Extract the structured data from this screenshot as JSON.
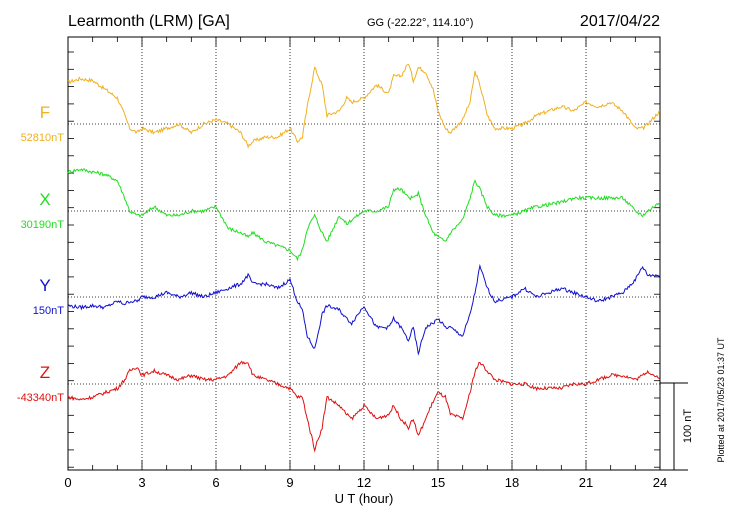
{
  "header": {
    "station": "Learmonth (LRM)  [GA]",
    "coords": "GG (-22.22°, 114.10°)",
    "date": "2017/04/22"
  },
  "plotted_note": "Plotted at 2017/05/23 01:37  UT",
  "scale_label": "100 nT",
  "colors": {
    "F": "#f0b020",
    "X": "#22dd22",
    "Y": "#1010d0",
    "Z": "#e01010"
  },
  "chart_data": {
    "type": "line",
    "xlabel": "U T (hour)",
    "xlim": [
      0,
      24
    ],
    "xticks": [
      "0",
      "3",
      "6",
      "9",
      "12",
      "15",
      "18",
      "21",
      "24"
    ],
    "grid": true,
    "series": [
      {
        "name": "F",
        "baseline": "52810nT",
        "x": [
          0,
          0.5,
          1,
          1.5,
          2,
          2.3,
          2.5,
          2.8,
          3,
          3.5,
          4,
          4.5,
          5,
          5.5,
          6,
          6.5,
          7,
          7.3,
          7.5,
          8,
          8.5,
          9,
          9.3,
          9.5,
          9.7,
          10,
          10.3,
          10.5,
          11,
          11.3,
          11.5,
          12,
          12.5,
          13,
          13.2,
          13.5,
          13.8,
          14,
          14.2,
          14.5,
          14.8,
          15,
          15.3,
          15.5,
          16,
          16.3,
          16.5,
          16.7,
          17,
          17.3,
          18,
          18.5,
          19,
          20,
          20.5,
          21,
          21.5,
          22,
          22.5,
          23,
          23.3,
          23.5,
          24
        ],
        "values": [
          48,
          52,
          50,
          40,
          30,
          10,
          -5,
          -10,
          -5,
          -10,
          -5,
          0,
          -10,
          0,
          5,
          0,
          -10,
          -25,
          -20,
          -15,
          -15,
          -5,
          -20,
          -15,
          20,
          65,
          45,
          10,
          15,
          30,
          25,
          30,
          45,
          35,
          55,
          55,
          70,
          50,
          65,
          60,
          40,
          15,
          -5,
          -10,
          5,
          25,
          60,
          45,
          10,
          -5,
          -5,
          0,
          10,
          20,
          15,
          25,
          20,
          25,
          15,
          -5,
          -5,
          0,
          15
        ]
      },
      {
        "name": "X",
        "baseline": "30190nT",
        "x": [
          0,
          0.5,
          1,
          1.5,
          2,
          2.3,
          2.5,
          2.8,
          3,
          3.5,
          4,
          4.5,
          5,
          5.5,
          6,
          6.5,
          7,
          7.3,
          7.5,
          8,
          8.5,
          9,
          9.3,
          9.5,
          9.7,
          10,
          10.3,
          10.5,
          11,
          11.3,
          11.5,
          12,
          12.5,
          13,
          13.2,
          13.5,
          13.8,
          14,
          14.2,
          14.5,
          14.8,
          15,
          15.3,
          15.5,
          16,
          16.3,
          16.5,
          16.7,
          17,
          17.3,
          18,
          18.5,
          19,
          20,
          20.5,
          21,
          21.5,
          22,
          22.5,
          23,
          23.3,
          23.5,
          24
        ],
        "values": [
          45,
          48,
          45,
          42,
          35,
          15,
          0,
          -5,
          -5,
          5,
          -5,
          -5,
          0,
          0,
          5,
          -20,
          -25,
          -30,
          -25,
          -35,
          -40,
          -45,
          -55,
          -45,
          -20,
          -5,
          -25,
          -35,
          -5,
          -15,
          -10,
          0,
          0,
          5,
          25,
          25,
          15,
          15,
          20,
          -5,
          -25,
          -30,
          -35,
          -25,
          -10,
          15,
          35,
          25,
          5,
          -5,
          -5,
          0,
          5,
          10,
          15,
          15,
          15,
          15,
          15,
          0,
          -5,
          0,
          10
        ]
      },
      {
        "name": "Y",
        "baseline": "150nT",
        "x": [
          0,
          0.5,
          1,
          1.5,
          2,
          2.3,
          2.5,
          2.8,
          3,
          3.5,
          4,
          4.5,
          5,
          5.5,
          6,
          6.5,
          7,
          7.3,
          7.5,
          8,
          8.5,
          9,
          9.3,
          9.5,
          9.7,
          10,
          10.3,
          10.5,
          11,
          11.3,
          11.5,
          12,
          12.5,
          13,
          13.2,
          13.5,
          13.8,
          14,
          14.2,
          14.5,
          14.8,
          15,
          15.3,
          15.5,
          16,
          16.3,
          16.5,
          16.7,
          17,
          17.3,
          18,
          18.5,
          19,
          20,
          20.5,
          21,
          21.5,
          22,
          22.5,
          23,
          23.3,
          23.5,
          24
        ],
        "values": [
          -10,
          -12,
          -10,
          -12,
          -5,
          -8,
          -5,
          -5,
          0,
          0,
          5,
          0,
          5,
          0,
          5,
          10,
          15,
          25,
          15,
          15,
          10,
          20,
          -5,
          -15,
          -45,
          -60,
          -20,
          -10,
          -15,
          -25,
          -30,
          -10,
          -35,
          -35,
          -25,
          -35,
          -50,
          -35,
          -65,
          -35,
          -30,
          -25,
          -35,
          -35,
          -45,
          -20,
          5,
          35,
          10,
          -5,
          0,
          10,
          0,
          10,
          5,
          0,
          -5,
          0,
          5,
          20,
          35,
          25,
          25
        ]
      },
      {
        "name": "Z",
        "baseline": "-43340nT",
        "x": [
          0,
          0.5,
          1,
          1.5,
          2,
          2.3,
          2.5,
          2.8,
          3,
          3.5,
          4,
          4.5,
          5,
          5.5,
          6,
          6.5,
          7,
          7.3,
          7.5,
          8,
          8.5,
          9,
          9.3,
          9.5,
          9.7,
          10,
          10.3,
          10.5,
          11,
          11.3,
          11.5,
          12,
          12.5,
          13,
          13.2,
          13.5,
          13.8,
          14,
          14.2,
          14.5,
          14.8,
          15,
          15.3,
          15.5,
          16,
          16.3,
          16.5,
          16.7,
          17,
          17.3,
          18,
          18.5,
          19,
          20,
          20.5,
          21,
          21.5,
          22,
          22.5,
          23,
          23.3,
          23.5,
          24
        ],
        "values": [
          -15,
          -18,
          -15,
          -10,
          -5,
          5,
          15,
          20,
          10,
          15,
          10,
          5,
          10,
          5,
          5,
          10,
          25,
          25,
          10,
          5,
          0,
          -5,
          -15,
          -15,
          -40,
          -75,
          -50,
          -15,
          -25,
          -35,
          -40,
          -25,
          -40,
          -35,
          -25,
          -40,
          -50,
          -40,
          -60,
          -40,
          -20,
          -10,
          -15,
          -35,
          -40,
          -10,
          15,
          25,
          15,
          5,
          0,
          0,
          -5,
          -5,
          0,
          0,
          5,
          10,
          10,
          5,
          10,
          15,
          5
        ]
      }
    ]
  }
}
